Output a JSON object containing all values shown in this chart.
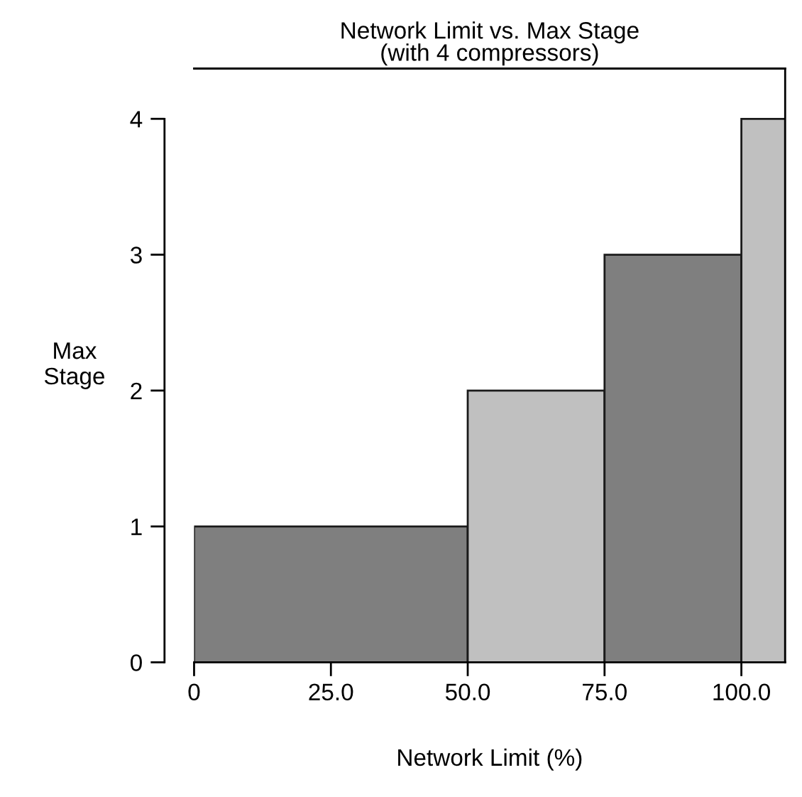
{
  "chart_data": {
    "type": "histogram",
    "title": "Network Limit vs. Max Stage\n(with 4 compressors)",
    "xlabel": "Network Limit (%)",
    "ylabel": "Max\nStage",
    "bins": [
      0,
      50,
      75,
      100,
      108
    ],
    "values": [
      1,
      2,
      3,
      4
    ],
    "colors": [
      "#7f7f7f",
      "#c0c0c0",
      "#7f7f7f",
      "#c0c0c0"
    ],
    "xlim": [
      0,
      108
    ],
    "ylim": [
      0,
      4.37
    ],
    "xticks": [
      0,
      {
        "value": 25,
        "label": "25.0"
      },
      {
        "value": 50,
        "label": "50.0"
      },
      {
        "value": 75,
        "label": "75.0"
      },
      {
        "value": 100,
        "label": "100.0"
      }
    ],
    "yticks": [
      0,
      1,
      2,
      3,
      4
    ],
    "grid": false,
    "legend": false
  }
}
